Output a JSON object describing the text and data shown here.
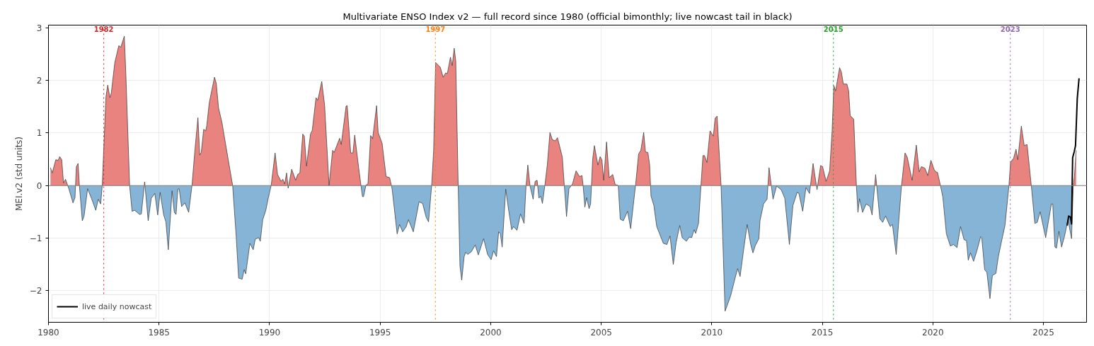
{
  "chart_data": {
    "type": "area",
    "title": "Multivariate ENSO Index v2 — full record since 1980 (official bimonthly; live nowcast tail in black)",
    "ylabel": "MEI.v2 (std units)",
    "xlim": [
      1980,
      2026.95
    ],
    "xticks": [
      1980,
      1985,
      1990,
      1995,
      2000,
      2005,
      2010,
      2015,
      2020,
      2025
    ],
    "ylim": [
      -2.6,
      3.05
    ],
    "yticks": [
      {
        "value": -2,
        "label": "−2"
      },
      {
        "value": -1,
        "label": "−1"
      },
      0,
      1,
      2,
      3
    ],
    "grid": true,
    "legend": "bottom left",
    "ref_lines": [
      {
        "axis": "y",
        "value": 0,
        "color": "#808080",
        "line_style": "solid"
      },
      {
        "axis": "x",
        "value": 1982.5,
        "label": "1982",
        "color": "#d62728",
        "line_style": "dotted"
      },
      {
        "axis": "x",
        "value": 1997.5,
        "label": "1997",
        "color": "#ff7f0e",
        "line_style": "dotted"
      },
      {
        "axis": "x",
        "value": 2015.5,
        "label": "2015",
        "color": "#2ca02c",
        "line_style": "dotted"
      },
      {
        "axis": "x",
        "value": 2023.5,
        "label": "2023",
        "color": "#9467bd",
        "line_style": "dotted"
      }
    ],
    "x": [
      1980.09,
      1980.17,
      1980.33,
      1980.44,
      1980.51,
      1980.6,
      1980.68,
      1980.77,
      1980.92,
      1981.11,
      1981.2,
      1981.26,
      1981.34,
      1981.4,
      1981.53,
      1981.61,
      1981.77,
      1981.95,
      1982.14,
      1982.25,
      1982.36,
      1982.43,
      1982.6,
      1982.68,
      1982.78,
      1982.84,
      1983.0,
      1983.18,
      1983.27,
      1983.43,
      1983.5,
      1983.67,
      1983.78,
      1983.9,
      1984.12,
      1984.2,
      1984.35,
      1984.51,
      1984.65,
      1984.81,
      1984.94,
      1985.05,
      1985.21,
      1985.31,
      1985.42,
      1985.59,
      1985.69,
      1985.77,
      1985.85,
      1985.91,
      1986.02,
      1986.17,
      1986.34,
      1986.49,
      1986.63,
      1986.76,
      1986.84,
      1986.91,
      1987.02,
      1987.11,
      1987.16,
      1987.27,
      1987.37,
      1987.51,
      1987.59,
      1987.69,
      1987.85,
      1988.07,
      1988.33,
      1988.49,
      1988.6,
      1988.76,
      1988.85,
      1988.92,
      1989.11,
      1989.26,
      1989.35,
      1989.51,
      1989.58,
      1989.69,
      1989.83,
      1989.94,
      1990.07,
      1990.25,
      1990.36,
      1990.52,
      1990.6,
      1990.68,
      1990.77,
      1990.84,
      1991.0,
      1991.18,
      1991.27,
      1991.37,
      1991.5,
      1991.57,
      1991.67,
      1991.85,
      1991.93,
      1992.1,
      1992.18,
      1992.36,
      1992.49,
      1992.69,
      1992.85,
      1992.92,
      1993.17,
      1993.24,
      1993.46,
      1993.51,
      1993.67,
      1993.77,
      1993.85,
      1994.04,
      1994.2,
      1994.25,
      1994.36,
      1994.45,
      1994.57,
      1994.66,
      1994.84,
      1994.91,
      1995.09,
      1995.27,
      1995.43,
      1995.54,
      1995.77,
      1995.88,
      1996.02,
      1996.18,
      1996.28,
      1996.5,
      1996.76,
      1996.92,
      1997.08,
      1997.19,
      1997.33,
      1997.42,
      1997.51,
      1997.72,
      1997.85,
      1997.96,
      1998.04,
      1998.18,
      1998.26,
      1998.35,
      1998.42,
      1998.53,
      1998.61,
      1998.69,
      1998.8,
      1998.87,
      1998.96,
      1999.12,
      1999.3,
      1999.44,
      1999.68,
      1999.86,
      2000.02,
      2000.13,
      2000.26,
      2000.36,
      2000.44,
      2000.52,
      2000.68,
      2000.82,
      2000.95,
      2001.03,
      2001.19,
      2001.35,
      2001.51,
      2001.6,
      2001.68,
      2001.78,
      2001.92,
      2002.01,
      2002.1,
      2002.18,
      2002.26,
      2002.34,
      2002.45,
      2002.56,
      2002.68,
      2002.79,
      2002.92,
      2003.02,
      2003.24,
      2003.33,
      2003.43,
      2003.54,
      2003.7,
      2003.86,
      2004.02,
      2004.13,
      2004.18,
      2004.26,
      2004.34,
      2004.45,
      2004.52,
      2004.61,
      2004.69,
      2004.85,
      2004.95,
      2005.03,
      2005.11,
      2005.24,
      2005.36,
      2005.52,
      2005.63,
      2005.77,
      2005.86,
      2006.0,
      2006.19,
      2006.33,
      2006.55,
      2006.69,
      2006.79,
      2006.92,
      2007.0,
      2007.11,
      2007.19,
      2007.25,
      2007.38,
      2007.51,
      2007.81,
      2007.97,
      2008.11,
      2008.26,
      2008.39,
      2008.55,
      2008.66,
      2008.85,
      2008.98,
      2009.09,
      2009.2,
      2009.27,
      2009.4,
      2009.51,
      2009.6,
      2009.67,
      2009.78,
      2009.92,
      2010.07,
      2010.15,
      2010.24,
      2010.42,
      2010.6,
      2010.85,
      2011.06,
      2011.17,
      2011.28,
      2011.44,
      2011.6,
      2011.76,
      2011.86,
      2011.97,
      2012.13,
      2012.18,
      2012.34,
      2012.5,
      2012.59,
      2012.77,
      2012.93,
      2013.14,
      2013.3,
      2013.51,
      2013.67,
      2013.86,
      2013.94,
      2014.11,
      2014.26,
      2014.42,
      2014.58,
      2014.76,
      2014.92,
      2015.01,
      2015.17,
      2015.33,
      2015.44,
      2015.52,
      2015.6,
      2015.78,
      2015.86,
      2015.95,
      2016.11,
      2016.19,
      2016.26,
      2016.42,
      2016.54,
      2016.61,
      2016.68,
      2016.82,
      2016.98,
      2017.16,
      2017.25,
      2017.41,
      2017.6,
      2017.73,
      2017.86,
      2018.07,
      2018.17,
      2018.34,
      2018.58,
      2018.74,
      2018.84,
      2019.06,
      2019.25,
      2019.38,
      2019.48,
      2019.64,
      2019.77,
      2019.91,
      2020.05,
      2020.13,
      2020.21,
      2020.34,
      2020.45,
      2020.61,
      2020.79,
      2020.93,
      2021.09,
      2021.25,
      2021.41,
      2021.52,
      2021.6,
      2021.7,
      2021.84,
      2021.99,
      2022.16,
      2022.21,
      2022.34,
      2022.44,
      2022.58,
      2022.69,
      2022.85,
      2022.96,
      2023.12,
      2023.26,
      2023.44,
      2023.51,
      2023.65,
      2023.76,
      2023.84,
      2024.0,
      2024.13,
      2024.26,
      2024.45,
      2024.61,
      2024.72,
      2024.85,
      2025.1,
      2025.36,
      2025.42,
      2025.52,
      2025.59,
      2025.7,
      2025.82,
      2025.95,
      2026.11,
      2026.27,
      2026.35,
      2026.4,
      2026.48
    ],
    "series": [
      {
        "type": "area",
        "color": "#e8837f",
        "values": [
          0.34,
          0.24,
          0.49,
          0.48,
          0.55,
          0.49,
          0.05,
          0.12,
          null,
          null,
          null,
          0.36,
          0.42,
          null,
          null,
          null,
          null,
          null,
          null,
          null,
          null,
          null,
          1.69,
          1.91,
          1.67,
          1.76,
          2.34,
          2.66,
          2.63,
          2.84,
          2.12,
          0,
          null,
          null,
          null,
          null,
          0.07,
          null,
          null,
          null,
          null,
          null,
          null,
          null,
          null,
          null,
          null,
          null,
          null,
          null,
          null,
          null,
          null,
          0,
          0.71,
          1.29,
          0.58,
          0.63,
          1.07,
          1.04,
          1.14,
          1.57,
          1.78,
          2.06,
          1.94,
          1.48,
          1.19,
          0.64,
          0,
          null,
          null,
          null,
          null,
          null,
          null,
          null,
          null,
          null,
          null,
          null,
          null,
          null,
          0,
          0.62,
          0.21,
          0.08,
          0.12,
          0.03,
          0.24,
          null,
          0.31,
          0.1,
          0.21,
          0.24,
          0.98,
          0.94,
          0.37,
          0.98,
          1.05,
          1.67,
          1.62,
          1.98,
          1.52,
          0,
          0.67,
          0.63,
          0.9,
          0.78,
          1.51,
          1.52,
          0.62,
          0.62,
          0.96,
          0.3,
          null,
          null,
          0.01,
          0.03,
          0.95,
          0.89,
          1.52,
          1.01,
          0.8,
          0.17,
          0.15,
          null,
          null,
          null,
          null,
          null,
          null,
          null,
          null,
          null,
          null,
          null,
          0,
          0.67,
          2.34,
          2.25,
          2.06,
          2.14,
          2.13,
          2.44,
          2.28,
          2.61,
          2.37,
          0,
          null,
          null,
          null,
          null,
          null,
          null,
          null,
          null,
          null,
          null,
          null,
          null,
          null,
          null,
          null,
          null,
          null,
          null,
          null,
          null,
          null,
          null,
          null,
          0,
          0.39,
          null,
          null,
          0.08,
          0.1,
          null,
          null,
          null,
          0,
          0.39,
          1.01,
          0.87,
          0.85,
          0.91,
          0.54,
          0,
          null,
          null,
          0.03,
          0.28,
          0.17,
          0.19,
          0,
          null,
          null,
          null,
          null,
          0.49,
          0.76,
          0.39,
          0.55,
          0.49,
          0.1,
          0.83,
          0.15,
          0.21,
          0.02,
          0,
          null,
          null,
          null,
          null,
          0,
          0.6,
          0.67,
          1.01,
          0.64,
          0.63,
          0.39,
          null,
          null,
          null,
          null,
          null,
          null,
          null,
          null,
          null,
          null,
          null,
          null,
          null,
          null,
          null,
          null,
          0,
          0.57,
          0.57,
          0.44,
          1.04,
          0.94,
          1.28,
          1.32,
          0,
          null,
          null,
          null,
          null,
          null,
          null,
          null,
          null,
          null,
          null,
          null,
          null,
          null,
          null,
          0.34,
          null,
          null,
          null,
          null,
          null,
          null,
          null,
          null,
          null,
          null,
          null,
          0.42,
          null,
          0.38,
          0.36,
          0.08,
          0.28,
          1.03,
          1.9,
          1.8,
          2.24,
          2.16,
          1.93,
          1.93,
          1.8,
          1.33,
          1.26,
          0,
          null,
          null,
          null,
          null,
          null,
          null,
          0.21,
          null,
          null,
          null,
          null,
          null,
          null,
          0,
          0.62,
          0.54,
          0.1,
          0.77,
          0.26,
          0.36,
          0.33,
          0.19,
          0.48,
          0.31,
          0.26,
          0.25,
          0,
          null,
          null,
          null,
          null,
          null,
          null,
          null,
          null,
          null,
          null,
          null,
          null,
          null,
          null,
          null,
          null,
          null,
          null,
          null,
          null,
          null,
          null,
          0,
          0.44,
          0.52,
          0.69,
          0.49,
          1.13,
          0.76,
          0.78,
          0,
          null,
          null,
          null,
          null,
          null,
          null,
          null,
          null,
          null,
          null,
          null,
          null,
          null,
          0,
          0.17,
          0.67
        ]
      },
      {
        "type": "area",
        "color": "#86b4d6",
        "values": [
          null,
          null,
          null,
          null,
          null,
          null,
          null,
          null,
          -0.06,
          -0.33,
          -0.23,
          null,
          null,
          -0.01,
          -0.67,
          -0.58,
          -0.06,
          -0.25,
          -0.47,
          -0.26,
          -0.35,
          -0.01,
          null,
          null,
          null,
          null,
          null,
          null,
          null,
          null,
          null,
          0,
          -0.49,
          -0.47,
          -0.55,
          -0.54,
          null,
          -0.67,
          -0.24,
          -0.15,
          -0.56,
          -0.13,
          -0.56,
          -0.69,
          -1.22,
          -0.1,
          -0.51,
          -0.55,
          -0.07,
          -0.06,
          -0.4,
          -0.33,
          -0.51,
          0,
          null,
          null,
          null,
          null,
          null,
          null,
          null,
          null,
          null,
          null,
          null,
          null,
          null,
          null,
          0,
          -0.97,
          -1.76,
          -1.78,
          -1.6,
          -1.68,
          -1.1,
          -1.22,
          -1.02,
          -0.99,
          -1.06,
          -0.65,
          -0.47,
          -0.24,
          0,
          null,
          null,
          null,
          null,
          null,
          null,
          -0.05,
          null,
          null,
          null,
          null,
          null,
          null,
          null,
          null,
          null,
          null,
          null,
          null,
          null,
          0,
          null,
          null,
          null,
          null,
          null,
          null,
          null,
          null,
          null,
          null,
          -0.21,
          -0.21,
          null,
          null,
          null,
          null,
          null,
          null,
          null,
          null,
          null,
          -0.06,
          -0.92,
          -0.74,
          -0.88,
          -0.78,
          -0.65,
          -0.88,
          -0.31,
          -0.34,
          -0.6,
          -0.69,
          0,
          null,
          null,
          null,
          null,
          null,
          null,
          null,
          null,
          null,
          null,
          0,
          -1.53,
          -1.8,
          -1.35,
          -1.27,
          -1.31,
          -1.26,
          -1.13,
          -1.32,
          -1.01,
          -1.31,
          -1.41,
          -1.24,
          -1.35,
          -0.88,
          -0.92,
          -1.17,
          -0.07,
          -0.49,
          -0.84,
          -0.78,
          -0.85,
          -0.54,
          -0.72,
          0,
          null,
          -0.01,
          -0.26,
          null,
          null,
          -0.24,
          -0.2,
          -0.34,
          0,
          null,
          null,
          null,
          null,
          null,
          null,
          0,
          -0.59,
          -0.06,
          null,
          null,
          null,
          null,
          0,
          -0.41,
          -0.23,
          -0.44,
          -0.35,
          null,
          null,
          null,
          null,
          null,
          null,
          null,
          null,
          null,
          null,
          0,
          -0.64,
          -0.67,
          -0.49,
          -0.82,
          0,
          null,
          null,
          null,
          null,
          null,
          null,
          -0.2,
          -0.38,
          -0.78,
          -1.1,
          -1.12,
          -0.96,
          -1.5,
          -1.08,
          -0.76,
          -0.99,
          -1.06,
          -0.98,
          -0.99,
          -0.84,
          -0.91,
          -0.72,
          0,
          null,
          null,
          null,
          null,
          null,
          null,
          null,
          0,
          -2.39,
          -2.1,
          -1.75,
          -1.58,
          -1.73,
          -1.22,
          -0.74,
          -1.12,
          -1.28,
          -1.14,
          -1.01,
          -0.67,
          -0.35,
          -0.26,
          null,
          -0.26,
          -0.01,
          -0.08,
          -0.24,
          -1.12,
          -0.38,
          -0.13,
          -0.15,
          -0.49,
          -0.04,
          -0.15,
          null,
          -0.08,
          null,
          null,
          null,
          null,
          null,
          null,
          null,
          null,
          null,
          null,
          null,
          null,
          null,
          null,
          0,
          -0.51,
          -0.25,
          -0.51,
          -0.35,
          -0.4,
          -0.56,
          null,
          -0.63,
          -0.7,
          -0.58,
          -0.78,
          -0.74,
          -1.31,
          0,
          null,
          null,
          null,
          null,
          null,
          null,
          null,
          null,
          null,
          null,
          null,
          null,
          0,
          -0.22,
          -0.92,
          -1.15,
          -1.12,
          -1.18,
          -0.78,
          -1.03,
          -1.05,
          -1.42,
          -1.28,
          -1.44,
          -1.24,
          -0.97,
          -0.99,
          -1.6,
          -1.65,
          -2.15,
          -1.71,
          -1.67,
          -1.35,
          -1.03,
          -0.76,
          0,
          null,
          null,
          null,
          null,
          null,
          null,
          null,
          0,
          -0.72,
          -0.7,
          -0.5,
          -0.99,
          -0.35,
          -0.35,
          -1.17,
          -1.19,
          -0.87,
          -1.17,
          -0.97,
          -0.65,
          -1.01,
          0,
          null,
          null
        ]
      },
      {
        "type": "line",
        "color": "#333333",
        "values": [
          0.34,
          0.24,
          0.49,
          0.48,
          0.55,
          0.49,
          0.05,
          0.12,
          -0.06,
          -0.33,
          -0.23,
          0.36,
          0.42,
          -0.01,
          -0.67,
          -0.58,
          -0.06,
          -0.25,
          -0.47,
          -0.26,
          -0.35,
          -0.01,
          1.69,
          1.91,
          1.67,
          1.76,
          2.34,
          2.66,
          2.63,
          2.84,
          2.12,
          0,
          -0.49,
          -0.47,
          -0.55,
          -0.54,
          0.07,
          -0.67,
          -0.24,
          -0.15,
          -0.56,
          -0.13,
          -0.56,
          -0.69,
          -1.22,
          -0.1,
          -0.51,
          -0.55,
          -0.07,
          -0.06,
          -0.4,
          -0.33,
          -0.51,
          0,
          0.71,
          1.29,
          0.58,
          0.63,
          1.07,
          1.04,
          1.14,
          1.57,
          1.78,
          2.06,
          1.94,
          1.48,
          1.19,
          0.64,
          0,
          -0.97,
          -1.76,
          -1.78,
          -1.6,
          -1.68,
          -1.1,
          -1.22,
          -1.02,
          -0.99,
          -1.06,
          -0.65,
          -0.47,
          -0.24,
          0,
          0.62,
          0.21,
          0.08,
          0.12,
          0.03,
          0.24,
          -0.05,
          0.31,
          0.1,
          0.21,
          0.24,
          0.98,
          0.94,
          0.37,
          0.98,
          1.05,
          1.67,
          1.62,
          1.98,
          1.52,
          0,
          0.67,
          0.63,
          0.9,
          0.78,
          1.51,
          1.52,
          0.62,
          0.62,
          0.96,
          0.3,
          -0.21,
          -0.21,
          0.01,
          0.03,
          0.95,
          0.89,
          1.52,
          1.01,
          0.8,
          0.17,
          0.15,
          -0.06,
          -0.92,
          -0.74,
          -0.88,
          -0.78,
          -0.65,
          -0.88,
          -0.31,
          -0.34,
          -0.6,
          -0.69,
          0,
          0.67,
          2.34,
          2.25,
          2.06,
          2.14,
          2.13,
          2.44,
          2.28,
          2.61,
          2.37,
          0,
          -1.53,
          -1.8,
          -1.35,
          -1.27,
          -1.31,
          -1.26,
          -1.13,
          -1.32,
          -1.01,
          -1.31,
          -1.41,
          -1.24,
          -1.35,
          -0.88,
          -0.92,
          -1.17,
          -0.07,
          -0.49,
          -0.84,
          -0.78,
          -0.85,
          -0.54,
          -0.72,
          0,
          0.39,
          -0.01,
          -0.26,
          0.08,
          0.1,
          -0.24,
          -0.2,
          -0.34,
          0,
          0.39,
          1.01,
          0.87,
          0.85,
          0.91,
          0.54,
          0,
          -0.59,
          -0.06,
          0.03,
          0.28,
          0.17,
          0.19,
          0,
          -0.41,
          -0.23,
          -0.44,
          -0.35,
          0.49,
          0.76,
          0.39,
          0.55,
          0.49,
          0.1,
          0.83,
          0.15,
          0.21,
          0.02,
          0,
          -0.64,
          -0.67,
          -0.49,
          -0.82,
          0,
          0.6,
          0.67,
          1.01,
          0.64,
          0.63,
          0.39,
          -0.2,
          -0.38,
          -0.78,
          -1.1,
          -1.12,
          -0.96,
          -1.5,
          -1.08,
          -0.76,
          -0.99,
          -1.06,
          -0.98,
          -0.99,
          -0.84,
          -0.91,
          -0.72,
          0,
          0.57,
          0.57,
          0.44,
          1.04,
          0.94,
          1.28,
          1.32,
          0,
          -2.39,
          -2.1,
          -1.75,
          -1.58,
          -1.73,
          -1.22,
          -0.74,
          -1.12,
          -1.28,
          -1.14,
          -1.01,
          -0.67,
          -0.35,
          -0.26,
          0.34,
          -0.26,
          -0.01,
          -0.08,
          -0.24,
          -1.12,
          -0.38,
          -0.13,
          -0.15,
          -0.49,
          -0.04,
          -0.15,
          0.42,
          -0.08,
          0.38,
          0.36,
          0.08,
          0.28,
          1.03,
          1.9,
          1.8,
          2.24,
          2.16,
          1.93,
          1.93,
          1.8,
          1.33,
          1.26,
          0,
          -0.51,
          -0.25,
          -0.51,
          -0.35,
          -0.4,
          -0.56,
          0.21,
          -0.63,
          -0.7,
          -0.58,
          -0.78,
          -0.74,
          -1.31,
          0,
          0.62,
          0.54,
          0.1,
          0.77,
          0.26,
          0.36,
          0.33,
          0.19,
          0.48,
          0.31,
          0.26,
          0.25,
          0,
          -0.22,
          -0.92,
          -1.15,
          -1.12,
          -1.18,
          -0.78,
          -1.03,
          -1.05,
          -1.42,
          -1.28,
          -1.44,
          -1.24,
          -0.97,
          -0.99,
          -1.6,
          -1.65,
          -2.15,
          -1.71,
          -1.67,
          -1.35,
          -1.03,
          -0.76,
          0,
          0.44,
          0.52,
          0.69,
          0.49,
          1.13,
          0.76,
          0.78,
          0,
          -0.72,
          -0.7,
          -0.5,
          -0.99,
          -0.35,
          -0.35,
          -1.17,
          -1.19,
          -0.87,
          -1.17,
          -0.97,
          -0.65,
          -1.01,
          0,
          0.17,
          0.67
        ]
      },
      {
        "type": "line",
        "name": "live daily nowcast",
        "color": "#000000",
        "x": [
          2026.07,
          2026.14,
          2026.22,
          2026.27,
          2026.32,
          2026.39,
          2026.45,
          2026.53,
          2026.61
        ],
        "values": [
          -0.76,
          -0.58,
          -0.6,
          -0.73,
          0.53,
          0.64,
          0.76,
          1.66,
          2.04
        ]
      }
    ]
  }
}
